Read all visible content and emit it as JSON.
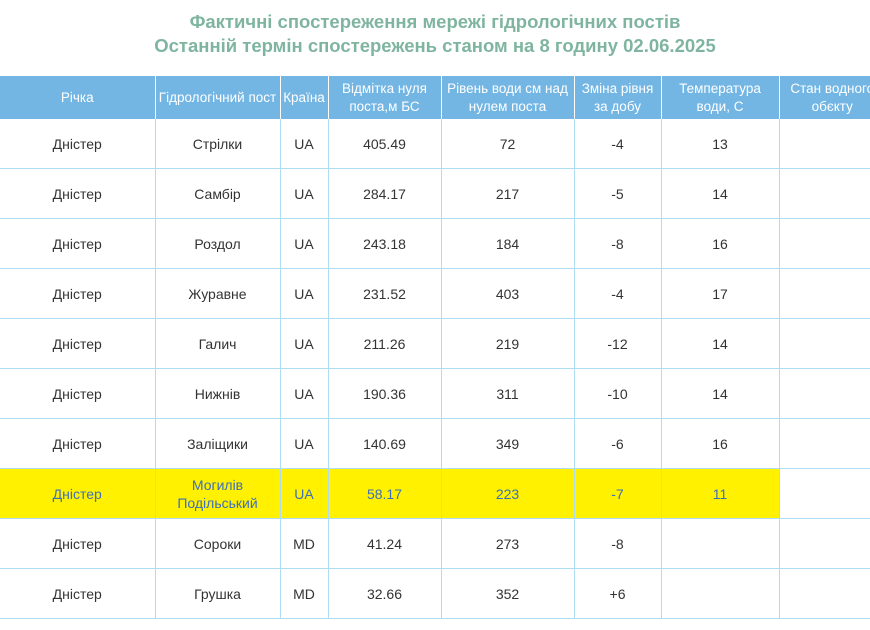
{
  "title": {
    "line1": "Фактичні спостереження мережі гідрологічних постів",
    "line2": "Останній термін спостережень станом на 8 годину 02.06.2025"
  },
  "columns": [
    "Річка",
    "Гідрологічний пост",
    "Країна",
    "Відмітка нуля поста,м БС",
    "Рівень води см над нулем поста",
    "Зміна рівня за добу",
    "Температура води, С",
    "Стан водного обєкту"
  ],
  "rows": [
    {
      "river": "Дністер",
      "post": "Стрілки",
      "country": "UA",
      "zero_mark": "405.49",
      "level": "72",
      "change": "-4",
      "temp": "13",
      "state": ""
    },
    {
      "river": "Дністер",
      "post": "Самбір",
      "country": "UA",
      "zero_mark": "284.17",
      "level": "217",
      "change": "-5",
      "temp": "14",
      "state": ""
    },
    {
      "river": "Дністер",
      "post": "Роздол",
      "country": "UA",
      "zero_mark": "243.18",
      "level": "184",
      "change": "-8",
      "temp": "16",
      "state": ""
    },
    {
      "river": "Дністер",
      "post": "Журавне",
      "country": "UA",
      "zero_mark": "231.52",
      "level": "403",
      "change": "-4",
      "temp": "17",
      "state": ""
    },
    {
      "river": "Дністер",
      "post": "Галич",
      "country": "UA",
      "zero_mark": "211.26",
      "level": "219",
      "change": "-12",
      "temp": "14",
      "state": ""
    },
    {
      "river": "Дністер",
      "post": "Нижнів",
      "country": "UA",
      "zero_mark": "190.36",
      "level": "311",
      "change": "-10",
      "temp": "14",
      "state": ""
    },
    {
      "river": "Дністер",
      "post": "Заліщики",
      "country": "UA",
      "zero_mark": "140.69",
      "level": "349",
      "change": "-6",
      "temp": "16",
      "state": ""
    },
    {
      "river": "Дністер",
      "post": "Могилів Подільський",
      "country": "UA",
      "zero_mark": "58.17",
      "level": "223",
      "change": "-7",
      "temp": "11",
      "state": "",
      "highlighted": true
    },
    {
      "river": "Дністер",
      "post": "Сороки",
      "country": "MD",
      "zero_mark": "41.24",
      "level": "273",
      "change": "-8",
      "temp": "",
      "state": ""
    },
    {
      "river": "Дністер",
      "post": "Грушка",
      "country": "MD",
      "zero_mark": "32.66",
      "level": "352",
      "change": "+6",
      "temp": "",
      "state": ""
    }
  ],
  "colors": {
    "title": "#7fb5a0",
    "header_bg": "#73b6e4",
    "grid_line": "#aedcf1",
    "highlight_bg": "#fff100",
    "highlight_text": "#3d6fb8"
  }
}
